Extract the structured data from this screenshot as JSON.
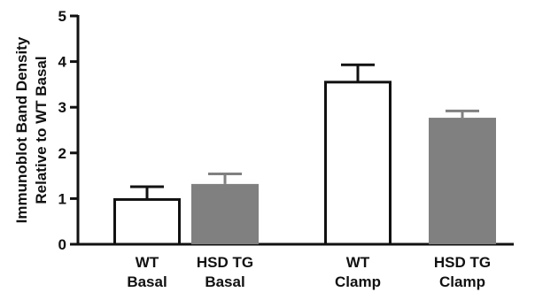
{
  "chart_data": {
    "type": "bar",
    "categories": [
      [
        "WT",
        "Basal"
      ],
      [
        "HSD TG",
        "Basal"
      ],
      [
        "WT",
        "Clamp"
      ],
      [
        "HSD TG",
        "Clamp"
      ]
    ],
    "values": [
      0.98,
      1.32,
      3.55,
      2.77
    ],
    "errors": [
      0.28,
      0.22,
      0.38,
      0.15
    ],
    "bar_fills": [
      "#ffffff",
      "#808080",
      "#ffffff",
      "#808080"
    ],
    "bar_strokes": [
      "#111111",
      "#808080",
      "#111111",
      "#808080"
    ],
    "ylabel": [
      "Immunoblot Band Density",
      "Relative to WT Basal"
    ],
    "xlabel": "",
    "title": "",
    "ylim": [
      0,
      5
    ],
    "yticks": [
      0,
      1,
      2,
      3,
      4,
      5
    ],
    "grid": false,
    "colors": {
      "axis": "#111111",
      "gray_bar": "#808080"
    }
  }
}
